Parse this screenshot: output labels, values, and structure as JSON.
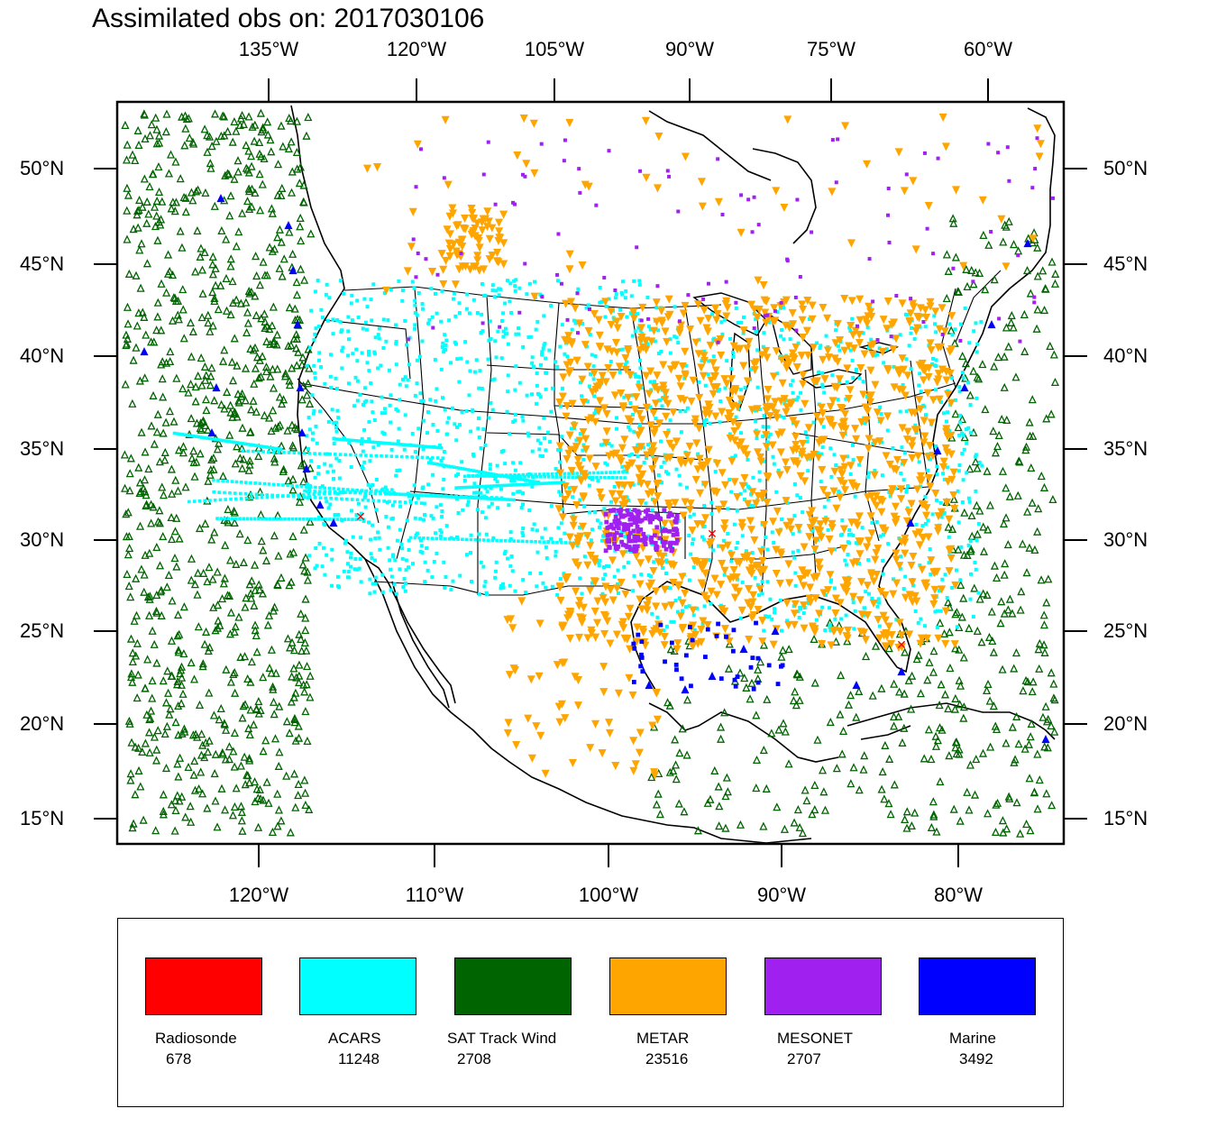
{
  "title": "Assimilated obs on: 2017030106",
  "axes": {
    "top_lon_labels": [
      "135°W",
      "120°W",
      "105°W",
      "90°W",
      "75°W",
      "60°W"
    ],
    "bottom_lon_labels": [
      "120°W",
      "110°W",
      "100°W",
      "90°W",
      "80°W"
    ],
    "left_lat_labels": [
      "50°N",
      "45°N",
      "40°N",
      "35°N",
      "30°N",
      "25°N",
      "20°N",
      "15°N"
    ],
    "right_lat_labels": [
      "50°N",
      "45°N",
      "40°N",
      "35°N",
      "30°N",
      "25°N",
      "20°N",
      "15°N"
    ]
  },
  "legend": [
    {
      "name": "Radiosonde",
      "count": "678",
      "color": "#ff0000"
    },
    {
      "name": "ACARS",
      "count": "11248",
      "color": "#00ffff"
    },
    {
      "name": "SAT Track Wind",
      "count": "2708",
      "color": "#006400"
    },
    {
      "name": "METAR",
      "count": "23516",
      "color": "#ffa500"
    },
    {
      "name": "MESONET",
      "count": "2707",
      "color": "#a020f0"
    },
    {
      "name": "Marine",
      "count": "3492",
      "color": "#0000ff"
    }
  ]
}
